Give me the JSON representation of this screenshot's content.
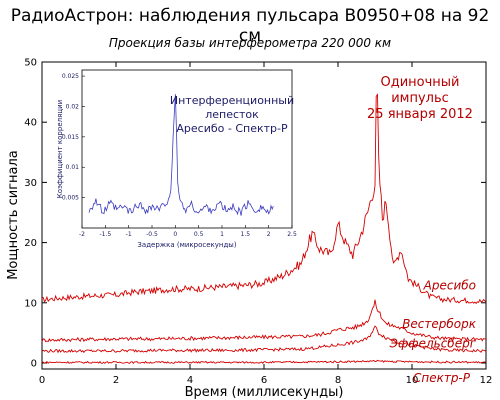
{
  "header": {
    "title": "РадиоАстрон: наблюдения пульсара B0950+08 на 92 см",
    "subtitle": "Проекция базы интерферометра  220 000 км"
  },
  "annotation": {
    "line1": "Одиночный",
    "line2": "импульс",
    "line3": "25 января 2012"
  },
  "inset_annotation": {
    "line1": "Интерференционный",
    "line2": "лепесток",
    "line3": "Аресибо - Спектр-Р"
  },
  "colors": {
    "main": "#d40000",
    "inset": "#3b3bbf",
    "annotation": "#b40000",
    "inset_text": "#1a1a66"
  },
  "chart_data": [
    {
      "type": "line",
      "title": "РадиоАстрон: наблюдения пульсара B0950+08 на 92 см",
      "subtitle": "Проекция базы интерферометра  220 000 км",
      "xlabel": "Время (миллисекунды)",
      "ylabel": "Мощность сигнала",
      "xlim": [
        0,
        12
      ],
      "ylim": [
        -1,
        50
      ],
      "xticks": [
        0,
        2,
        4,
        6,
        8,
        10,
        12
      ],
      "yticks": [
        0,
        10,
        20,
        30,
        40,
        50
      ],
      "grid": false,
      "series": [
        {
          "name": "Аресибо",
          "x": [
            0,
            0.5,
            1,
            1.5,
            2,
            2.5,
            3,
            3.5,
            4,
            4.5,
            5,
            5.5,
            6,
            6.5,
            7,
            7.3,
            7.5,
            7.8,
            8,
            8.2,
            8.4,
            8.6,
            8.8,
            9,
            9.05,
            9.1,
            9.2,
            9.3,
            9.5,
            9.7,
            9.9,
            10.2,
            10.5,
            10.8,
            11,
            11.5,
            12
          ],
          "y": [
            10.5,
            10.8,
            11.0,
            11.2,
            11.3,
            11.8,
            12.0,
            12.3,
            12.3,
            12.5,
            12.7,
            12.9,
            13.3,
            14.5,
            16.5,
            21.5,
            19.0,
            18.0,
            23.0,
            20.0,
            18.0,
            21.0,
            25.0,
            30.0,
            49.0,
            33.0,
            24.0,
            27.0,
            16.0,
            19.0,
            14.0,
            12.5,
            11.0,
            10.6,
            10.5,
            10.4,
            10.2
          ]
        },
        {
          "name": "Вестерборк",
          "x": [
            0,
            1,
            2,
            3,
            4,
            5,
            6,
            7,
            7.5,
            8,
            8.5,
            8.8,
            9,
            9.1,
            9.3,
            9.6,
            10,
            10.5,
            11,
            12
          ],
          "y": [
            3.8,
            3.9,
            4.0,
            4.0,
            4.1,
            4.2,
            4.3,
            4.4,
            4.7,
            5.5,
            6.0,
            7.0,
            10.0,
            8.5,
            6.5,
            6.0,
            5.0,
            4.3,
            4.0,
            3.9
          ]
        },
        {
          "name": "Эффельсберг",
          "x": [
            0,
            1,
            2,
            3,
            4,
            5,
            6,
            7,
            7.5,
            8,
            8.5,
            8.8,
            9,
            9.1,
            9.3,
            9.6,
            10,
            10.5,
            11,
            12
          ],
          "y": [
            2.0,
            2.0,
            2.0,
            2.1,
            2.1,
            2.1,
            2.2,
            2.3,
            2.6,
            3.0,
            3.5,
            4.0,
            6.0,
            5.0,
            4.2,
            3.5,
            3.0,
            2.4,
            2.1,
            2.0
          ]
        },
        {
          "name": "Спектр-Р",
          "x": [
            0,
            2,
            4,
            6,
            8,
            9,
            10,
            12
          ],
          "y": [
            0.1,
            0.1,
            0.1,
            0.1,
            0.2,
            0.3,
            0.2,
            0.1
          ]
        }
      ]
    },
    {
      "type": "line",
      "xlabel": "Задержка (микросекунды)",
      "ylabel": "Коэффициент корреляции",
      "xlim": [
        -2,
        2.5
      ],
      "ylim": [
        0,
        0.026
      ],
      "xticks": [
        -2,
        -1.5,
        -1,
        -0.5,
        0,
        0.5,
        1,
        1.5,
        2,
        2.5
      ],
      "xtick_labels": [
        "-2",
        "-1.5",
        "-1",
        "-0.5",
        "0",
        "0.5",
        "1",
        "1.5",
        "2",
        "2.5"
      ],
      "yticks": [
        0.005,
        0.01,
        0.015,
        0.02,
        0.025
      ],
      "ytick_labels": [
        "0.005",
        "0.01",
        "0.015",
        "0.02",
        "0.025"
      ],
      "series": [
        {
          "x": [
            -1.85,
            -1.7,
            -1.55,
            -1.4,
            -1.25,
            -1.1,
            -0.95,
            -0.8,
            -0.65,
            -0.5,
            -0.35,
            -0.2,
            -0.1,
            -0.05,
            0,
            0.05,
            0.1,
            0.2,
            0.35,
            0.5,
            0.65,
            0.8,
            0.95,
            1.1,
            1.25,
            1.4,
            1.55,
            1.7,
            1.85,
            2.0,
            2.1
          ],
          "y": [
            0.003,
            0.0045,
            0.0025,
            0.004,
            0.003,
            0.0035,
            0.0025,
            0.004,
            0.003,
            0.0035,
            0.003,
            0.004,
            0.006,
            0.014,
            0.022,
            0.008,
            0.0045,
            0.003,
            0.0038,
            0.0025,
            0.0035,
            0.003,
            0.004,
            0.0028,
            0.0035,
            0.0025,
            0.004,
            0.003,
            0.0035,
            0.0025,
            0.0035
          ]
        }
      ]
    }
  ]
}
